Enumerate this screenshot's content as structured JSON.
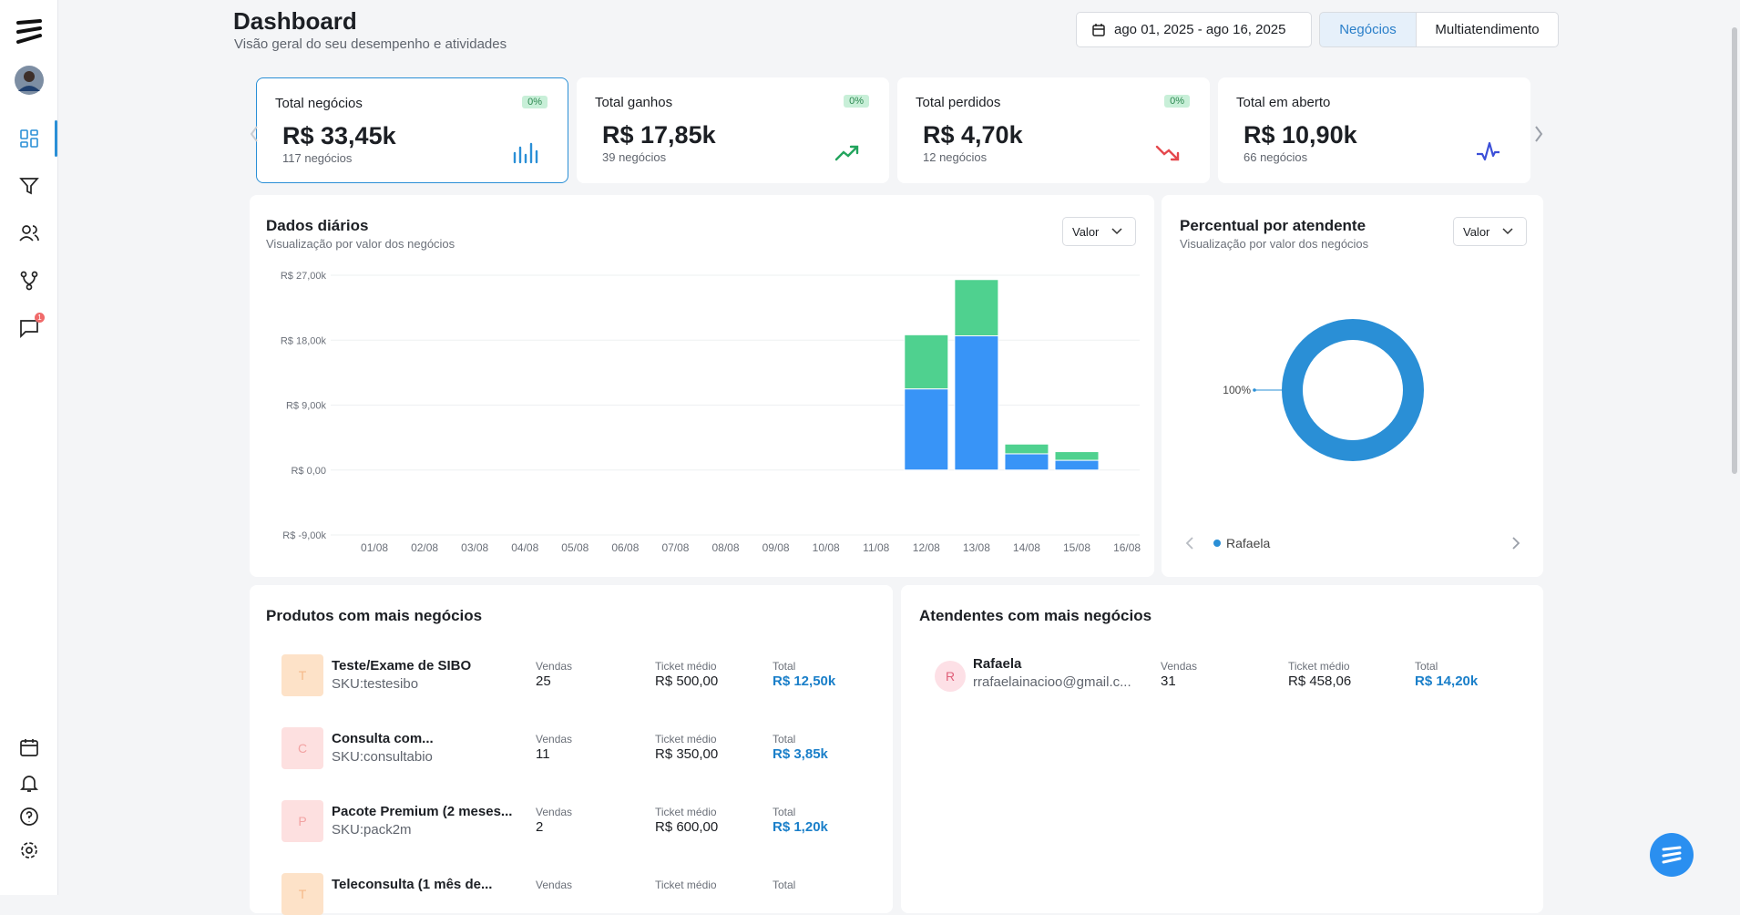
{
  "sidebar": {
    "chat_badge": "1"
  },
  "header": {
    "title": "Dashboard",
    "subtitle": "Visão geral do seu desempenho e atividades",
    "date_range": "ago 01, 2025 - ago 16, 2025",
    "tabs": [
      "Negócios",
      "Multiatendimento"
    ]
  },
  "kpis": [
    {
      "label": "Total negócios",
      "badge": "0%",
      "value": "R$ 33,45k",
      "sub": "117 negócios"
    },
    {
      "label": "Total ganhos",
      "badge": "0%",
      "value": "R$ 17,85k",
      "sub": "39 negócios"
    },
    {
      "label": "Total perdidos",
      "badge": "0%",
      "value": "R$ 4,70k",
      "sub": "12 negócios"
    },
    {
      "label": "Total em aberto",
      "value": "R$ 10,90k",
      "sub": "66 negócios"
    }
  ],
  "daily": {
    "title": "Dados diários",
    "subtitle": "Visualização por valor dos negócios",
    "select": "Valor"
  },
  "attendant_share": {
    "title": "Percentual por atendente",
    "subtitle": "Visualização por valor dos negócios",
    "select": "Valor"
  },
  "chart_data": [
    {
      "type": "bar",
      "stacked": true,
      "categories": [
        "01/08",
        "02/08",
        "03/08",
        "04/08",
        "05/08",
        "06/08",
        "07/08",
        "08/08",
        "09/08",
        "10/08",
        "11/08",
        "12/08",
        "13/08",
        "14/08",
        "15/08",
        "16/08"
      ],
      "series": [
        {
          "color": "#3894f7",
          "values": [
            0,
            0,
            0,
            0,
            0,
            0,
            0,
            0,
            0,
            0,
            0,
            11.25,
            18.6,
            2.25,
            1.35,
            0
          ]
        },
        {
          "color": "#4fd18f",
          "values": [
            0,
            0,
            0,
            0,
            0,
            0,
            0,
            0,
            0,
            0,
            0,
            7.5,
            7.8,
            1.35,
            1.2,
            0
          ]
        }
      ],
      "ylim": [
        -9,
        27
      ],
      "yticks": [
        {
          "value": 27,
          "label": "R$ 27,00k"
        },
        {
          "value": 18,
          "label": "R$ 18,00k"
        },
        {
          "value": 9,
          "label": "R$ 9,00k"
        },
        {
          "value": 0,
          "label": "R$ 0,00"
        },
        {
          "value": -9,
          "label": "R$ -9,00k"
        }
      ],
      "grid": true
    },
    {
      "type": "pie",
      "donut": true,
      "categories": [
        "Rafaela"
      ],
      "values": [
        100
      ],
      "value_labels": [
        "100%"
      ],
      "colors": [
        "#2a8fd6"
      ]
    }
  ],
  "products": {
    "title": "Produtos com mais negócios",
    "rows": [
      {
        "initial": "T",
        "name": "Teste/Exame de SIBO",
        "sku": "SKU:testesibo",
        "sales_label": "Vendas",
        "sales": "25",
        "ticket_label": "Ticket médio",
        "ticket": "R$ 500,00",
        "total_label": "Total",
        "total": "R$ 12,50k"
      },
      {
        "initial": "C",
        "name": "Consulta com...",
        "sku": "SKU:consultabio",
        "sales_label": "Vendas",
        "sales": "11",
        "ticket_label": "Ticket médio",
        "ticket": "R$ 350,00",
        "total_label": "Total",
        "total": "R$ 3,85k"
      },
      {
        "initial": "P",
        "name": "Pacote Premium (2 meses...",
        "sku": "SKU:pack2m",
        "sales_label": "Vendas",
        "sales": "2",
        "ticket_label": "Ticket médio",
        "ticket": "R$ 600,00",
        "total_label": "Total",
        "total": "R$ 1,20k"
      },
      {
        "initial": "T",
        "name": "Teleconsulta (1 mês de...",
        "sales_label": "Vendas",
        "ticket_label": "Ticket médio",
        "total_label": "Total"
      }
    ]
  },
  "attendants": {
    "title": "Atendentes com mais negócios",
    "rows": [
      {
        "initial": "R",
        "name": "Rafaela",
        "email": "rrafaelainacioo@gmail.c...",
        "sales_label": "Vendas",
        "sales": "31",
        "ticket_label": "Ticket médio",
        "ticket": "R$ 458,06",
        "total_label": "Total",
        "total": "R$ 14,20k"
      }
    ]
  }
}
